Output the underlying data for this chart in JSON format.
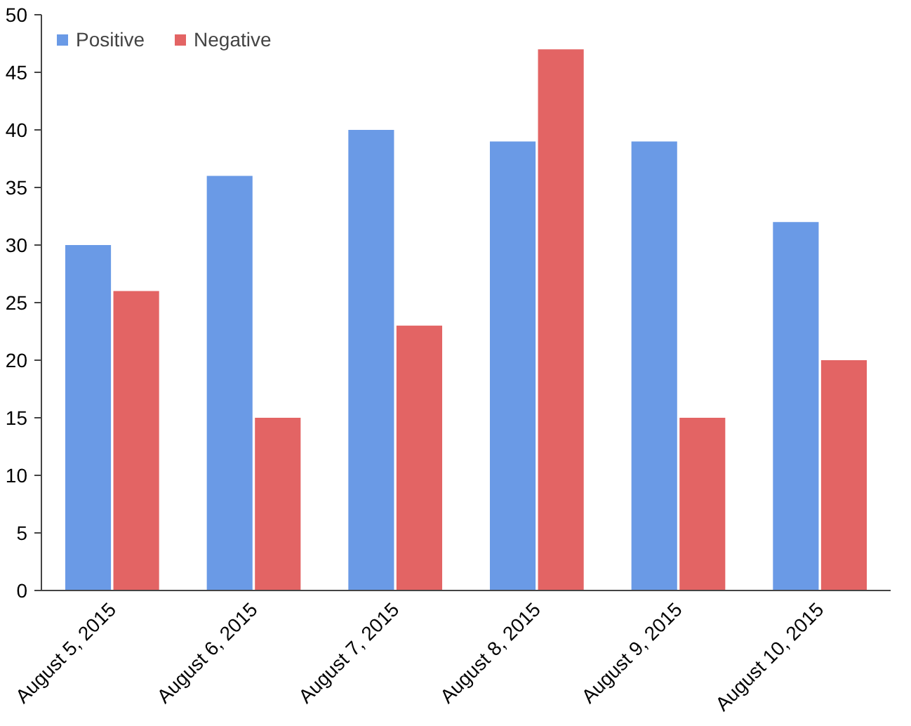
{
  "chart_data": {
    "type": "bar",
    "categories": [
      "August 5, 2015",
      "August 6, 2015",
      "August 7, 2015",
      "August 8, 2015",
      "August 9, 2015",
      "August 10, 2015"
    ],
    "series": [
      {
        "name": "Positive",
        "color": "#6a9ae6",
        "values": [
          30,
          36,
          40,
          39,
          39,
          32
        ]
      },
      {
        "name": "Negative",
        "color": "#e36464",
        "values": [
          26,
          15,
          23,
          47,
          15,
          20
        ]
      }
    ],
    "ylim": [
      0,
      50
    ],
    "yticks": [
      0,
      5,
      10,
      15,
      20,
      25,
      30,
      35,
      40,
      45,
      50
    ],
    "grid": false,
    "legend": "top left"
  }
}
